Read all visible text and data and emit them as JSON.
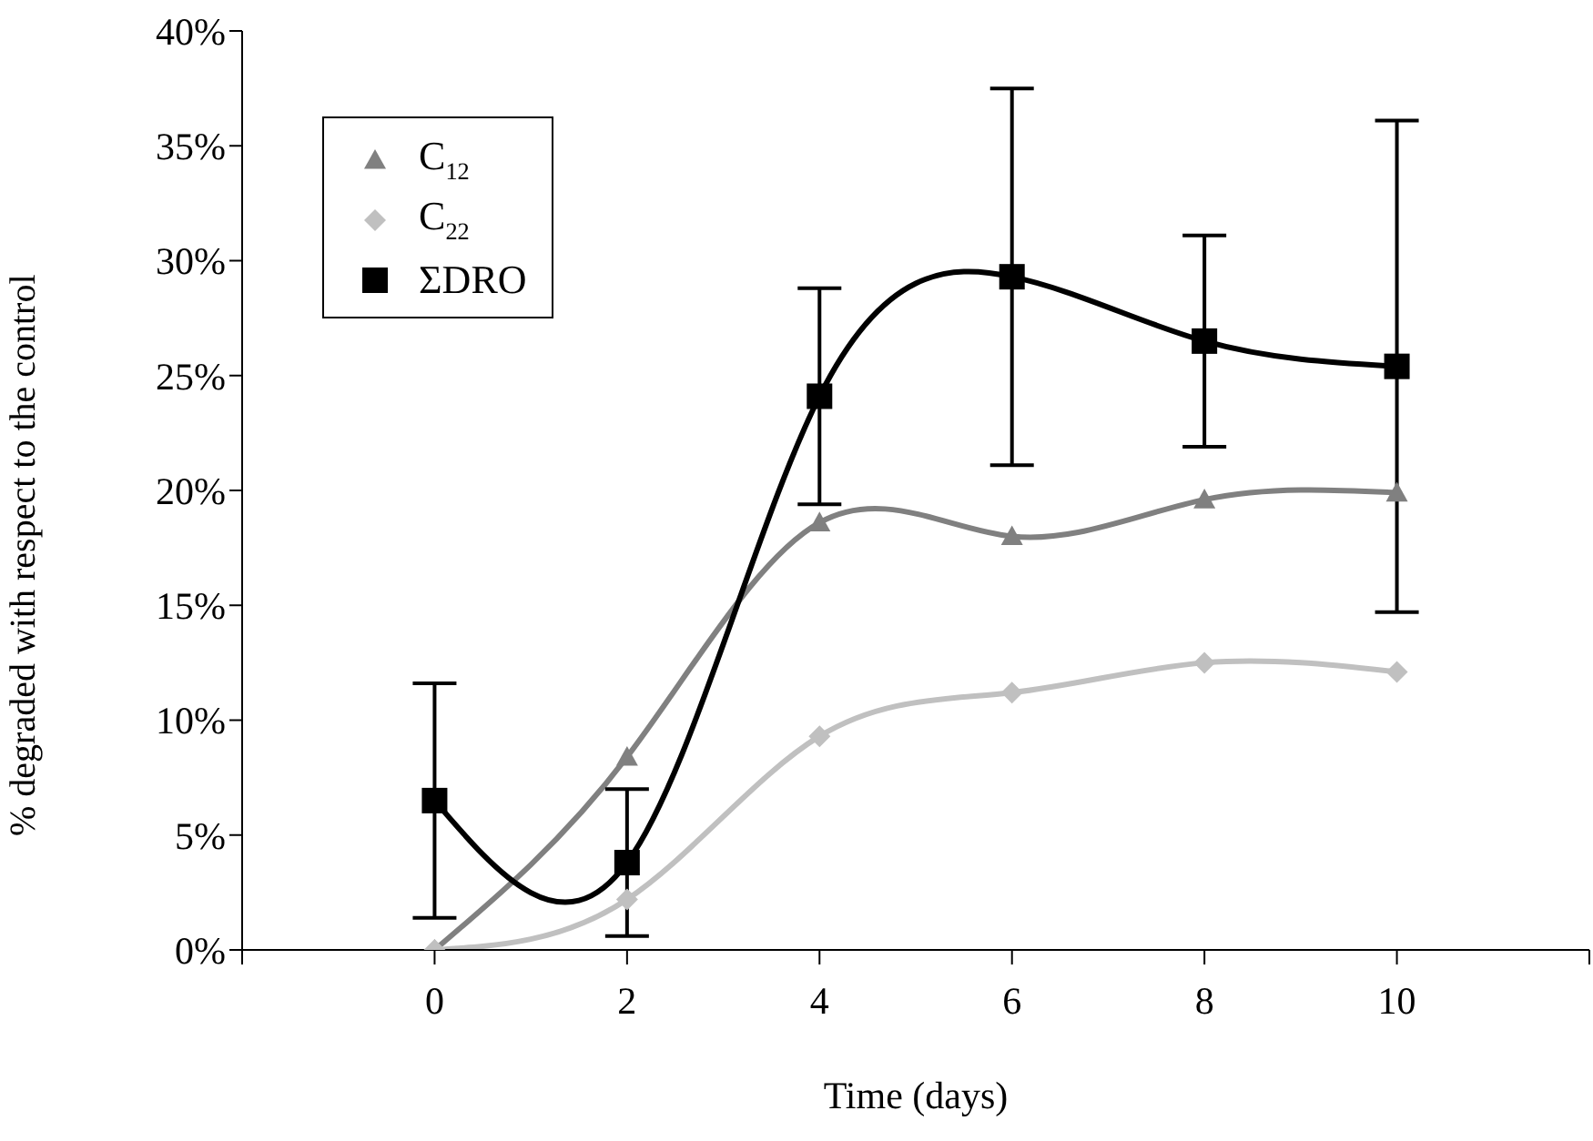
{
  "chart_data": {
    "type": "line",
    "xlabel": "Time (days)",
    "ylabel": "% degraded with respect to the control",
    "x": [
      0,
      2,
      4,
      6,
      8,
      10
    ],
    "xlim": [
      -2,
      12
    ],
    "xticks": [
      {
        "value": -2,
        "label": null
      },
      0,
      2,
      4,
      6,
      8,
      10,
      {
        "value": 12,
        "label": null
      }
    ],
    "ylim": [
      0,
      40
    ],
    "yticks": [
      {
        "value": 0,
        "label": "0%"
      },
      {
        "value": 5,
        "label": "5%"
      },
      {
        "value": 10,
        "label": "10%"
      },
      {
        "value": 15,
        "label": "15%"
      },
      {
        "value": 20,
        "label": "20%"
      },
      {
        "value": 25,
        "label": "25%"
      },
      {
        "value": 30,
        "label": "30%"
      },
      {
        "value": 35,
        "label": "35%"
      },
      {
        "value": 40,
        "label": "40%"
      }
    ],
    "grid": false,
    "legend": "top left",
    "series": [
      {
        "name": "C$_{12}$",
        "color": "#808080",
        "marker": "triangle",
        "values": [
          0,
          8.4,
          18.6,
          18.0,
          19.6,
          19.9
        ]
      },
      {
        "name": "C$_{22}$",
        "color": "#c0c0c0",
        "marker": "diamond",
        "values": [
          0,
          2.2,
          9.3,
          11.2,
          12.5,
          12.1
        ]
      },
      {
        "name": "ΣDRO",
        "color": "#000000",
        "marker": "square",
        "values": [
          6.5,
          3.8,
          24.1,
          29.3,
          26.5,
          25.4
        ],
        "errors": [
          5.1,
          3.2,
          4.7,
          8.2,
          4.6,
          10.7
        ]
      }
    ]
  }
}
